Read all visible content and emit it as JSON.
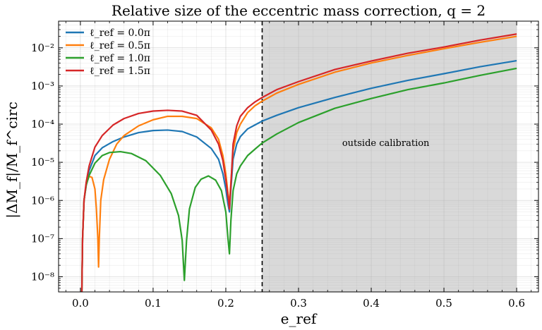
{
  "chart_data": {
    "type": "line",
    "title": "Relative size of the eccentric mass correction, q = 2",
    "xlabel": "e_ref",
    "ylabel": "|ΔM_f|/M_f^circ",
    "xlim": [
      -0.03,
      0.63
    ],
    "ylim": [
      4e-09,
      0.05
    ],
    "yscale": "log",
    "x_ticks": [
      0.0,
      0.1,
      0.2,
      0.3,
      0.4,
      0.5,
      0.6
    ],
    "x_tick_labels": [
      "0.0",
      "0.1",
      "0.2",
      "0.3",
      "0.4",
      "0.5",
      "0.6"
    ],
    "y_ticks": [
      1e-08,
      1e-07,
      1e-06,
      1e-05,
      0.0001,
      0.001,
      0.01
    ],
    "y_tick_labels": [
      "10⁻⁸",
      "10⁻⁷",
      "10⁻⁶",
      "10⁻⁵",
      "10⁻⁴",
      "10⁻³",
      "10⁻²"
    ],
    "grid": true,
    "legend_position": "top-left",
    "vline": {
      "x": 0.25,
      "style": "dashed",
      "color": "#000000"
    },
    "shaded_region": {
      "x_from": 0.25,
      "x_to": 0.6,
      "color": "#d9d9d9",
      "label": "outside calibration",
      "label_x": 0.42,
      "label_y": 3.2e-05
    },
    "series": [
      {
        "name": "ℓ_ref = 0.0π",
        "color": "#1f77b4",
        "x": [
          0.002,
          0.003,
          0.005,
          0.008,
          0.012,
          0.02,
          0.03,
          0.045,
          0.06,
          0.08,
          0.1,
          0.12,
          0.14,
          0.16,
          0.18,
          0.19,
          0.196,
          0.2,
          0.203,
          0.205,
          0.207,
          0.21,
          0.215,
          0.22,
          0.23,
          0.24,
          0.25,
          0.27,
          0.3,
          0.35,
          0.4,
          0.45,
          0.5,
          0.55,
          0.6
        ],
        "y": [
          4e-09,
          1e-07,
          1e-06,
          2.5e-06,
          6e-06,
          1.5e-05,
          2.4e-05,
          3.5e-05,
          4.6e-05,
          6e-05,
          6.8e-05,
          7e-05,
          6.4e-05,
          4.6e-05,
          2.3e-05,
          1.2e-05,
          5e-06,
          2e-06,
          8e-07,
          5e-07,
          2e-06,
          1.2e-05,
          3e-05,
          4.7e-05,
          7.5e-05,
          9.5e-05,
          0.00012,
          0.00017,
          0.00027,
          0.0005,
          0.00087,
          0.0014,
          0.0021,
          0.0032,
          0.0046
        ]
      },
      {
        "name": "ℓ_ref = 0.5π",
        "color": "#ff7f0e",
        "x": [
          0.002,
          0.003,
          0.005,
          0.008,
          0.012,
          0.016,
          0.02,
          0.022,
          0.024,
          0.025,
          0.026,
          0.028,
          0.032,
          0.04,
          0.05,
          0.06,
          0.08,
          0.1,
          0.12,
          0.14,
          0.16,
          0.18,
          0.19,
          0.196,
          0.2,
          0.203,
          0.205,
          0.207,
          0.21,
          0.215,
          0.22,
          0.23,
          0.24,
          0.25,
          0.27,
          0.3,
          0.35,
          0.4,
          0.45,
          0.5,
          0.55,
          0.6
        ],
        "y": [
          4e-09,
          1e-07,
          1e-06,
          2.7e-06,
          4.3e-06,
          4e-06,
          2e-06,
          6e-07,
          1e-07,
          1.8e-08,
          1e-07,
          1e-06,
          3.5e-06,
          1.2e-05,
          3e-05,
          5e-05,
          9e-05,
          0.00013,
          0.00016,
          0.00016,
          0.00014,
          8e-05,
          4e-05,
          1.5e-05,
          5e-06,
          1.5e-06,
          8e-07,
          3e-06,
          2e-05,
          6e-05,
          0.0001,
          0.0002,
          0.0003,
          0.0004,
          0.00065,
          0.0011,
          0.0023,
          0.004,
          0.0063,
          0.0095,
          0.014,
          0.02
        ]
      },
      {
        "name": "ℓ_ref = 1.0π",
        "color": "#2ca02c",
        "x": [
          0.002,
          0.003,
          0.005,
          0.008,
          0.012,
          0.02,
          0.03,
          0.04,
          0.055,
          0.07,
          0.09,
          0.11,
          0.125,
          0.135,
          0.14,
          0.143,
          0.146,
          0.15,
          0.158,
          0.166,
          0.176,
          0.186,
          0.194,
          0.2,
          0.203,
          0.205,
          0.207,
          0.21,
          0.215,
          0.22,
          0.23,
          0.24,
          0.25,
          0.27,
          0.3,
          0.35,
          0.4,
          0.45,
          0.5,
          0.55,
          0.6
        ],
        "y": [
          4e-09,
          1e-07,
          1e-06,
          2.5e-06,
          4.5e-06,
          9.5e-06,
          1.5e-05,
          1.8e-05,
          1.9e-05,
          1.7e-05,
          1.1e-05,
          4.5e-06,
          1.5e-06,
          4e-07,
          9e-08,
          8e-09,
          9e-08,
          6e-07,
          2.2e-06,
          3.6e-06,
          4.4e-06,
          3.4e-06,
          1.8e-06,
          5e-07,
          1e-07,
          4e-08,
          3e-07,
          1.8e-06,
          5e-06,
          8e-06,
          1.5e-05,
          2.2e-05,
          3.2e-05,
          5.5e-05,
          0.00011,
          0.00026,
          0.00047,
          0.0008,
          0.0012,
          0.0019,
          0.0029
        ]
      },
      {
        "name": "ℓ_ref = 1.5π",
        "color": "#d62728",
        "x": [
          0.002,
          0.003,
          0.005,
          0.008,
          0.012,
          0.02,
          0.03,
          0.045,
          0.06,
          0.08,
          0.1,
          0.12,
          0.14,
          0.16,
          0.18,
          0.19,
          0.196,
          0.2,
          0.203,
          0.205,
          0.207,
          0.21,
          0.215,
          0.22,
          0.23,
          0.24,
          0.25,
          0.27,
          0.3,
          0.35,
          0.4,
          0.45,
          0.5,
          0.55,
          0.6
        ],
        "y": [
          4e-09,
          1e-07,
          1e-06,
          3e-06,
          8e-06,
          2.5e-05,
          5e-05,
          9.5e-05,
          0.00014,
          0.00019,
          0.00022,
          0.00023,
          0.00022,
          0.00017,
          7e-05,
          3e-05,
          1.1e-05,
          3.5e-06,
          1.3e-06,
          6e-07,
          2.5e-06,
          3e-05,
          9e-05,
          0.00016,
          0.00027,
          0.00038,
          0.0005,
          0.0008,
          0.0013,
          0.0027,
          0.0045,
          0.0072,
          0.0105,
          0.016,
          0.023
        ]
      }
    ]
  }
}
